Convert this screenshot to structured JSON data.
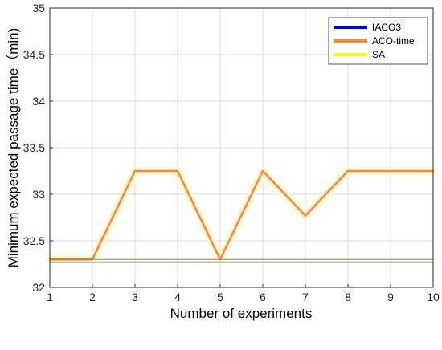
{
  "chart_data": {
    "type": "line",
    "title": "",
    "xlabel": "Number of experiments",
    "ylabel": "Minimum expected passage time（min)",
    "x": [
      1,
      2,
      3,
      4,
      5,
      6,
      7,
      8,
      9,
      10
    ],
    "xlim": [
      1,
      10
    ],
    "ylim": [
      32,
      35
    ],
    "xticks": [
      "1",
      "2",
      "3",
      "4",
      "5",
      "6",
      "7",
      "8",
      "9",
      "10"
    ],
    "yticks": [
      "32",
      "32.5",
      "33",
      "33.5",
      "34",
      "34.5",
      "35"
    ],
    "grid": true,
    "legend_position": "top-right",
    "series": [
      {
        "name": "IACO3",
        "color": "#0000ff",
        "x": [
          1,
          10
        ],
        "values": [
          32.27,
          32.27
        ]
      },
      {
        "name": "ACO-time",
        "color": "#ff8c1a",
        "x": [
          1,
          2,
          3,
          4,
          5,
          6,
          7,
          8,
          9,
          10
        ],
        "values": [
          32.3,
          32.3,
          33.25,
          33.25,
          32.3,
          33.25,
          32.77,
          33.25,
          33.25,
          33.25
        ]
      },
      {
        "name": "SA",
        "color": "#ffff00",
        "x": [
          1,
          2,
          3,
          4,
          5,
          6,
          7,
          8,
          9,
          10
        ],
        "values": [
          32.3,
          32.3,
          33.25,
          33.25,
          32.3,
          33.25,
          32.77,
          33.25,
          33.25,
          33.25
        ]
      }
    ],
    "rendered_line_colors": {
      "IACO3": "#555555",
      "ACO-time": "#f0806a",
      "SA": "#fffab8"
    }
  }
}
